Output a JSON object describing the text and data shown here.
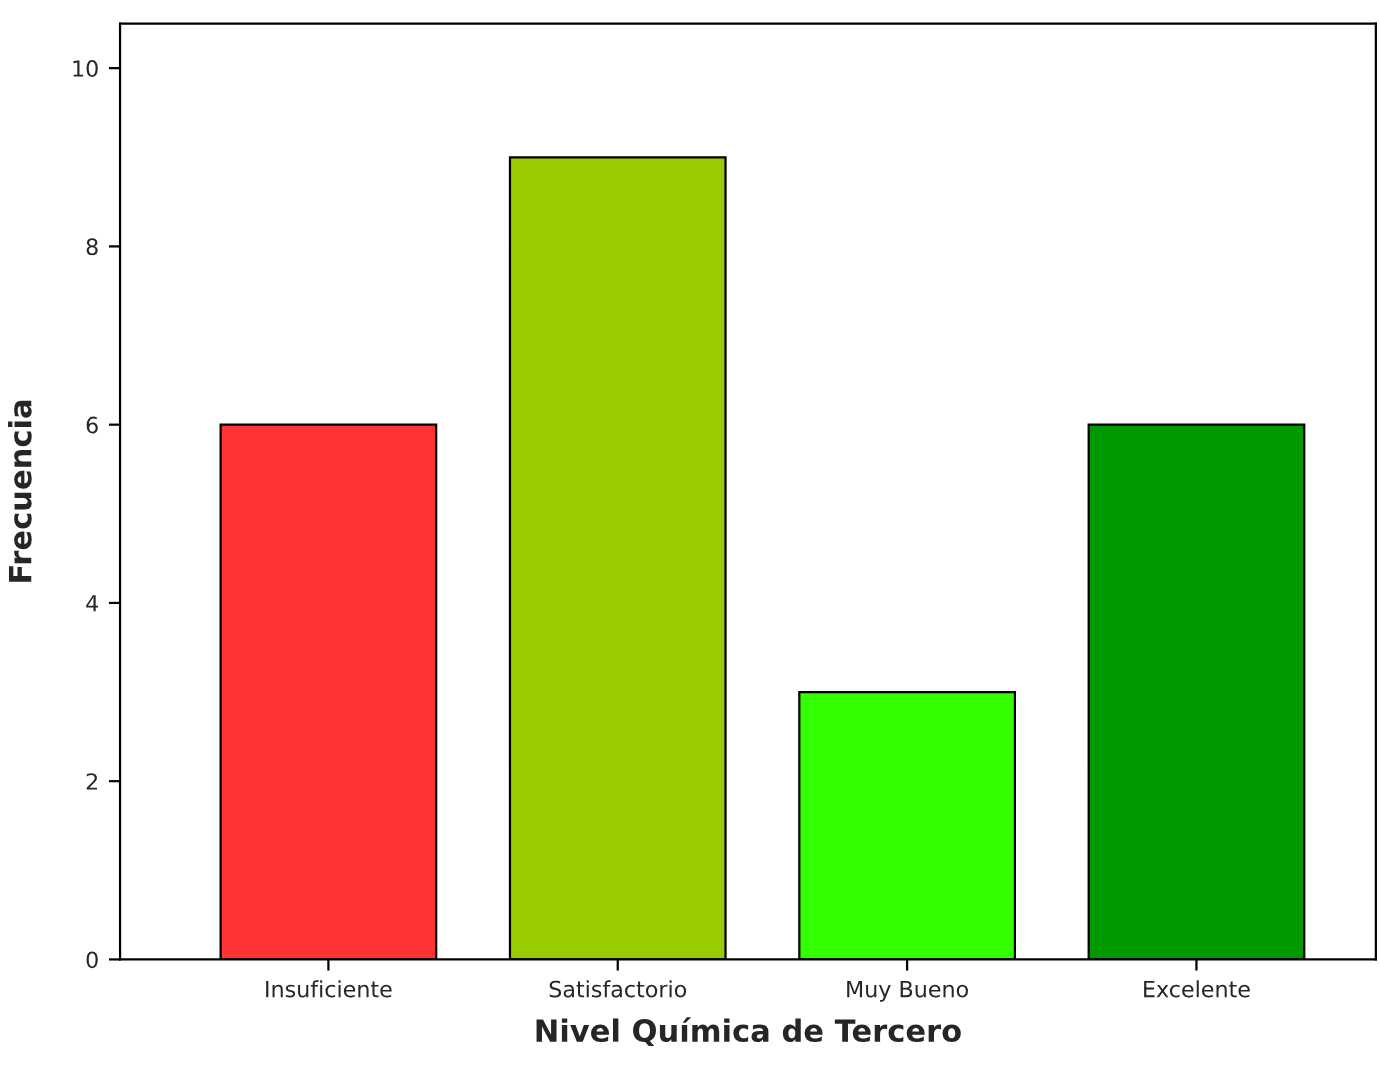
{
  "chart_data": {
    "type": "bar",
    "xlabel": "Nivel Química de Tercero",
    "ylabel": "Frecuencia",
    "categories": [
      "Insuficiente",
      "Satisfactorio",
      "Muy Bueno",
      "Excelente"
    ],
    "values": [
      6,
      9,
      3,
      6
    ],
    "colors": [
      "#ff3333",
      "#99cc00",
      "#33ff00",
      "#009900"
    ],
    "ylim": [
      0,
      10.5
    ],
    "yticks": [
      0,
      2,
      4,
      6,
      8,
      10
    ],
    "grid": false,
    "legend": false
  }
}
